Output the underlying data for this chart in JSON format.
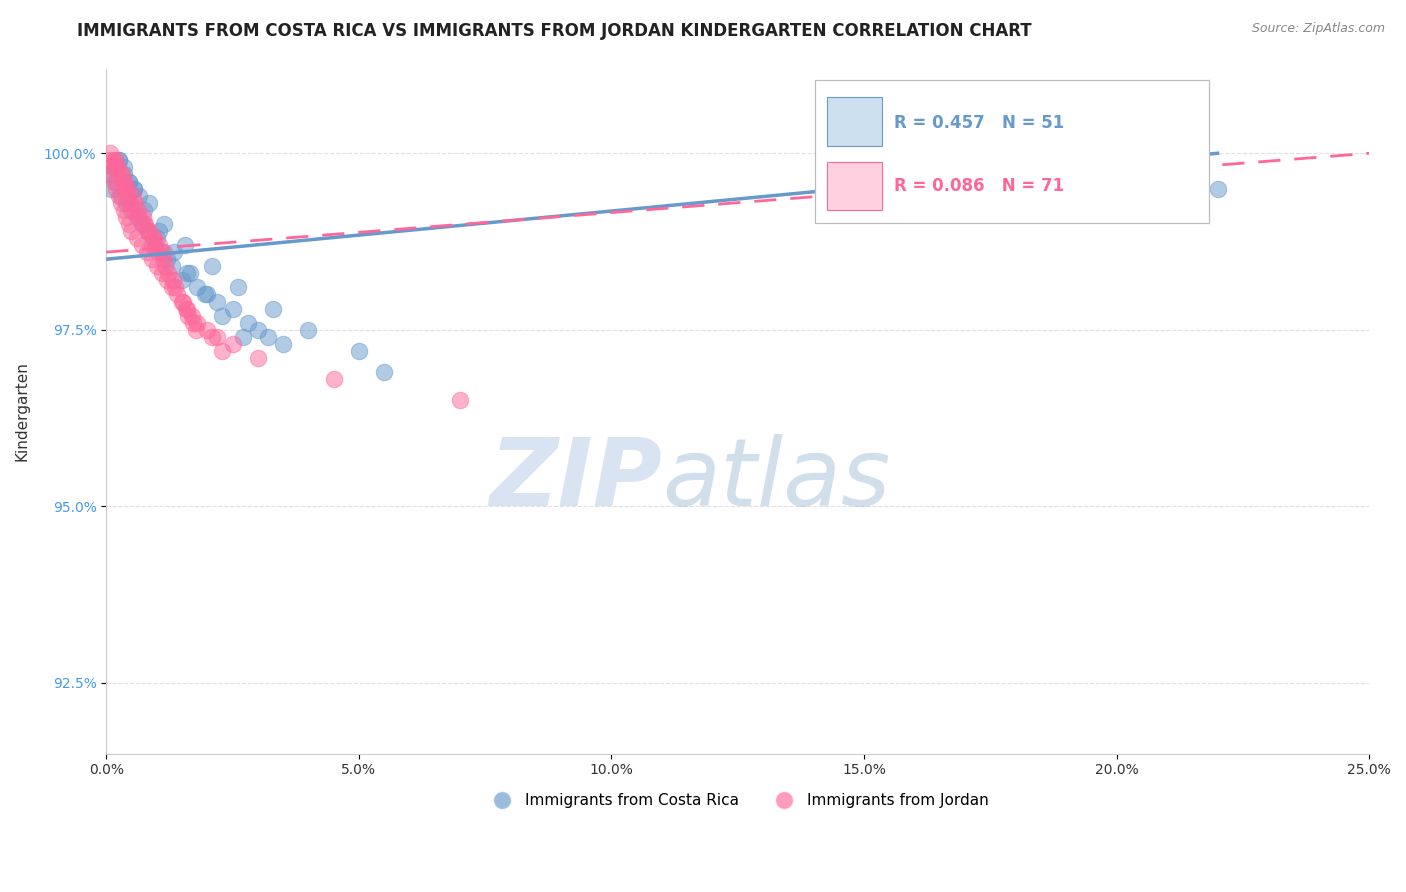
{
  "title": "IMMIGRANTS FROM COSTA RICA VS IMMIGRANTS FROM JORDAN KINDERGARTEN CORRELATION CHART",
  "source_text": "Source: ZipAtlas.com",
  "ylabel": "Kindergarten",
  "xlim": [
    0.0,
    25.0
  ],
  "ylim": [
    91.5,
    101.2
  ],
  "xticks": [
    0.0,
    5.0,
    10.0,
    15.0,
    20.0,
    25.0
  ],
  "yticks": [
    92.5,
    95.0,
    97.5,
    100.0
  ],
  "ytick_labels": [
    "92.5%",
    "95.0%",
    "97.5%",
    "100.0%"
  ],
  "xtick_labels": [
    "0.0%",
    "5.0%",
    "10.0%",
    "15.0%",
    "20.0%",
    "25.0%"
  ],
  "costa_rica_color": "#6699CC",
  "jordan_color": "#FF6699",
  "costa_rica_R": 0.457,
  "costa_rica_N": 51,
  "jordan_R": 0.086,
  "jordan_N": 71,
  "legend_label_cr": "Immigrants from Costa Rica",
  "legend_label_j": "Immigrants from Jordan",
  "watermark_zip": "ZIP",
  "watermark_atlas": "atlas",
  "background_color": "#ffffff",
  "title_fontsize": 12,
  "axis_label_fontsize": 11,
  "tick_fontsize": 10,
  "costa_rica_x": [
    0.05,
    0.1,
    0.15,
    0.2,
    0.25,
    0.3,
    0.35,
    0.4,
    0.45,
    0.5,
    0.55,
    0.6,
    0.65,
    0.7,
    0.8,
    0.9,
    1.0,
    1.1,
    1.2,
    1.3,
    1.5,
    1.6,
    1.8,
    2.0,
    2.2,
    2.5,
    2.8,
    3.0,
    3.2,
    3.5,
    0.35,
    0.55,
    0.75,
    1.05,
    1.35,
    1.65,
    1.95,
    2.3,
    2.7,
    0.25,
    0.45,
    0.85,
    1.15,
    1.55,
    2.1,
    2.6,
    3.3,
    4.0,
    5.0,
    5.5,
    22.0
  ],
  "costa_rica_y": [
    99.7,
    99.5,
    99.8,
    99.6,
    99.9,
    99.4,
    99.7,
    99.3,
    99.6,
    99.2,
    99.5,
    99.1,
    99.4,
    99.0,
    98.9,
    98.7,
    98.8,
    98.6,
    98.5,
    98.4,
    98.2,
    98.3,
    98.1,
    98.0,
    97.9,
    97.8,
    97.6,
    97.5,
    97.4,
    97.3,
    99.8,
    99.5,
    99.2,
    98.9,
    98.6,
    98.3,
    98.0,
    97.7,
    97.4,
    99.9,
    99.6,
    99.3,
    99.0,
    98.7,
    98.4,
    98.1,
    97.8,
    97.5,
    97.2,
    96.9,
    99.5
  ],
  "jordan_x": [
    0.05,
    0.08,
    0.1,
    0.12,
    0.15,
    0.18,
    0.2,
    0.22,
    0.25,
    0.28,
    0.3,
    0.33,
    0.35,
    0.38,
    0.4,
    0.42,
    0.45,
    0.48,
    0.5,
    0.55,
    0.6,
    0.65,
    0.7,
    0.75,
    0.8,
    0.85,
    0.9,
    0.95,
    1.0,
    1.05,
    1.1,
    1.15,
    1.2,
    1.3,
    1.4,
    1.5,
    1.6,
    1.7,
    1.8,
    2.0,
    2.2,
    2.5,
    0.32,
    0.52,
    0.72,
    0.92,
    1.12,
    1.32,
    1.52,
    1.72,
    0.22,
    0.42,
    0.62,
    0.82,
    1.02,
    1.22,
    1.62,
    2.1,
    3.0,
    4.5,
    7.0,
    0.17,
    0.37,
    0.57,
    0.77,
    0.97,
    1.17,
    1.37,
    1.57,
    1.77,
    2.3
  ],
  "jordan_y": [
    99.9,
    100.0,
    99.8,
    99.7,
    99.6,
    99.9,
    99.5,
    99.8,
    99.4,
    99.7,
    99.3,
    99.6,
    99.2,
    99.5,
    99.1,
    99.4,
    99.0,
    99.3,
    98.9,
    99.2,
    98.8,
    99.1,
    98.7,
    99.0,
    98.6,
    98.9,
    98.5,
    98.8,
    98.4,
    98.7,
    98.3,
    98.6,
    98.2,
    98.1,
    98.0,
    97.9,
    97.8,
    97.7,
    97.6,
    97.5,
    97.4,
    97.3,
    99.7,
    99.4,
    99.1,
    98.8,
    98.5,
    98.2,
    97.9,
    97.6,
    99.8,
    99.5,
    99.2,
    98.9,
    98.6,
    98.3,
    97.7,
    97.4,
    97.1,
    96.8,
    96.5,
    99.9,
    99.6,
    99.3,
    99.0,
    98.7,
    98.4,
    98.1,
    97.8,
    97.5,
    97.2
  ],
  "cr_trend_x": [
    0.0,
    22.0
  ],
  "cr_trend_y": [
    98.65,
    100.0
  ],
  "j_trend_x": [
    0.0,
    25.0
  ],
  "j_trend_y": [
    98.6,
    100.0
  ]
}
